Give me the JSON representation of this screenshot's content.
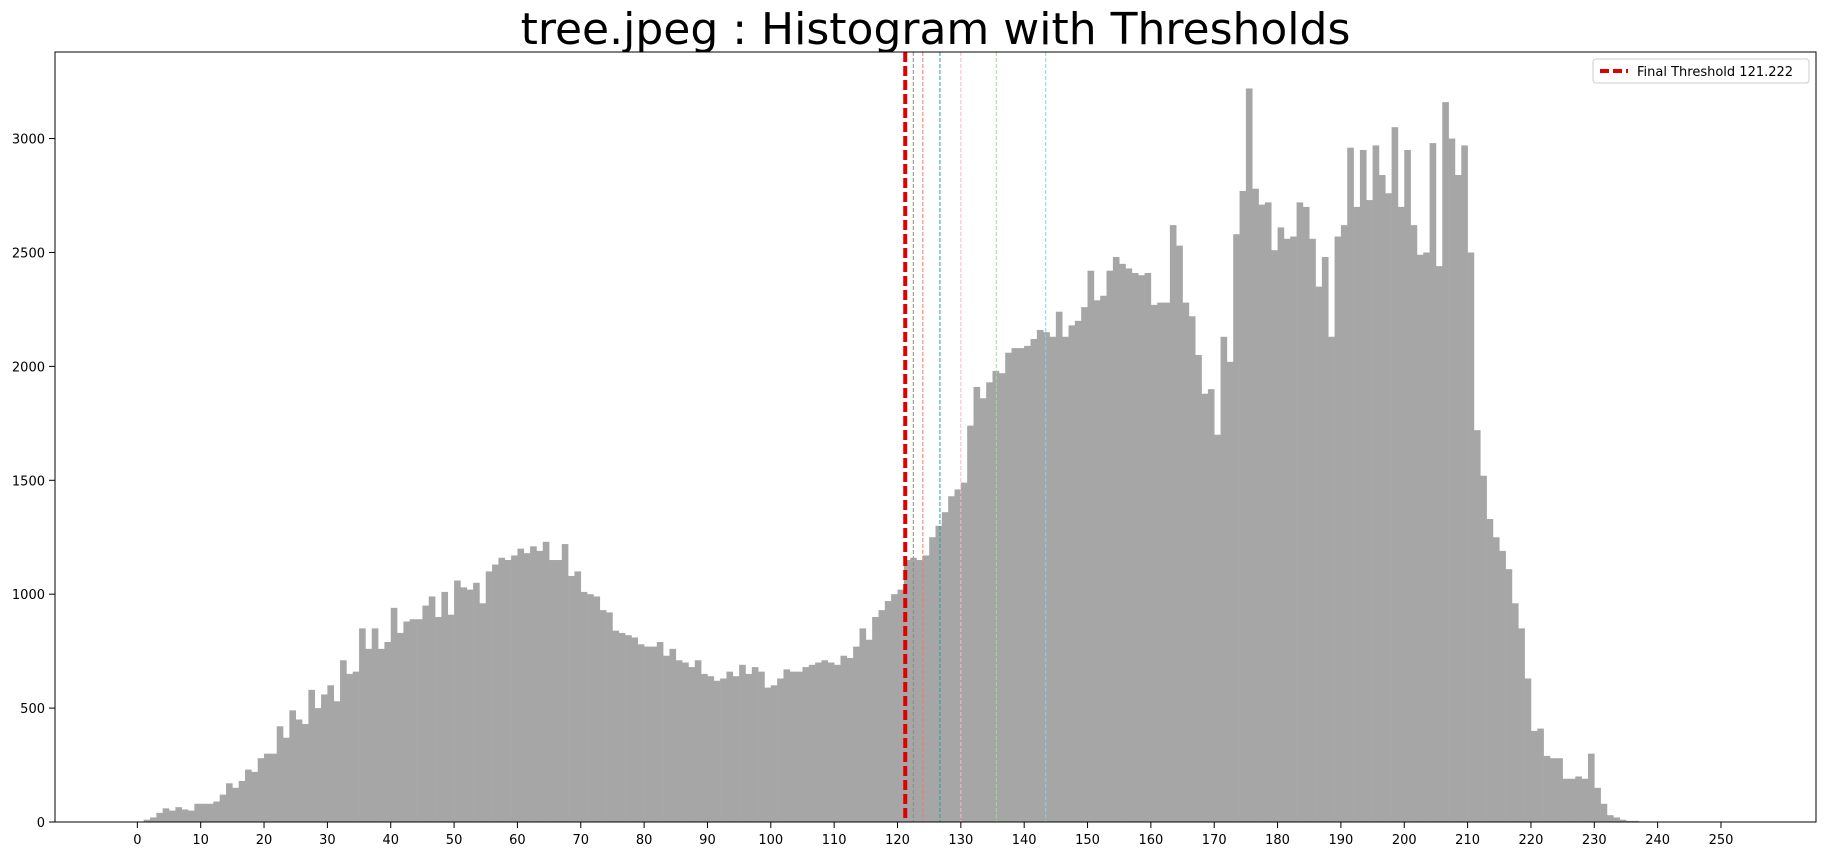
{
  "chart_data": {
    "type": "bar",
    "title": "tree.jpeg : Histogram with Thresholds",
    "xlabel": "",
    "ylabel": "",
    "xlim": [
      -13,
      265
    ],
    "ylim": [
      0,
      3380
    ],
    "grid": false,
    "legend_position": "top-right",
    "x_ticks": [
      0,
      10,
      20,
      30,
      40,
      50,
      60,
      70,
      80,
      90,
      100,
      110,
      120,
      130,
      140,
      150,
      160,
      170,
      180,
      190,
      200,
      210,
      220,
      230,
      240,
      250
    ],
    "y_ticks": [
      0,
      500,
      1000,
      1500,
      2000,
      2500,
      3000
    ],
    "bar_color": "#a6a6a6",
    "bins_start": 0,
    "bin_width": 1,
    "values": [
      0,
      10,
      20,
      40,
      60,
      50,
      65,
      55,
      50,
      80,
      80,
      80,
      90,
      120,
      170,
      150,
      180,
      230,
      220,
      280,
      300,
      300,
      420,
      370,
      490,
      450,
      430,
      580,
      500,
      560,
      600,
      530,
      710,
      650,
      660,
      850,
      760,
      850,
      760,
      790,
      940,
      830,
      880,
      890,
      890,
      950,
      990,
      900,
      1010,
      910,
      1060,
      1030,
      1020,
      1050,
      960,
      1100,
      1130,
      1160,
      1150,
      1170,
      1200,
      1180,
      1210,
      1190,
      1230,
      1150,
      1150,
      1220,
      1080,
      1100,
      1010,
      1000,
      990,
      930,
      920,
      840,
      830,
      820,
      810,
      780,
      770,
      770,
      790,
      730,
      760,
      710,
      700,
      680,
      710,
      650,
      640,
      620,
      630,
      660,
      640,
      690,
      650,
      680,
      660,
      590,
      600,
      630,
      670,
      660,
      660,
      680,
      690,
      700,
      710,
      700,
      690,
      730,
      720,
      770,
      850,
      800,
      900,
      930,
      970,
      1000,
      1020,
      1150,
      1160,
      1150,
      1170,
      1250,
      1300,
      1360,
      1430,
      1460,
      1490,
      1740,
      1910,
      1860,
      1930,
      1980,
      1970,
      2060,
      2080,
      2080,
      2090,
      2120,
      2160,
      2150,
      2130,
      2240,
      2130,
      2180,
      2200,
      2260,
      2420,
      2290,
      2310,
      2420,
      2480,
      2450,
      2430,
      2410,
      2400,
      2410,
      2270,
      2280,
      2280,
      2620,
      2530,
      2280,
      2220,
      2050,
      1880,
      1900,
      1700,
      2130,
      2020,
      2580,
      2770,
      3220,
      2780,
      2710,
      2720,
      2510,
      2610,
      2560,
      2570,
      2720,
      2700,
      2560,
      2350,
      2480,
      2130,
      2570,
      2620,
      2960,
      2700,
      2950,
      2730,
      2970,
      2840,
      2760,
      3050,
      2700,
      2950,
      2620,
      2490,
      2500,
      2980,
      2440,
      3160,
      3000,
      2840,
      2970,
      2500,
      1720,
      1520,
      1330,
      1250,
      1190,
      1110,
      960,
      850,
      630,
      400,
      410,
      290,
      280,
      280,
      190,
      190,
      200,
      190,
      300,
      150,
      80,
      30,
      20,
      10,
      5,
      5,
      0,
      0,
      0,
      0,
      0,
      0,
      0,
      0,
      0,
      0,
      0,
      0,
      0,
      0,
      0,
      0,
      0,
      0,
      0
    ],
    "thresholds": [
      {
        "value": 122.5,
        "color": "#8b8b8b",
        "style": "dashed"
      },
      {
        "value": 124,
        "color": "#f4776b",
        "style": "dashed"
      },
      {
        "value": 126.7,
        "color": "#1aa3a3",
        "style": "dashed"
      },
      {
        "value": 130,
        "color": "#ffb6c1",
        "style": "dashed"
      },
      {
        "value": 135.6,
        "color": "#98e090",
        "style": "dashed"
      },
      {
        "value": 143.4,
        "color": "#87cfee",
        "style": "dashed"
      }
    ],
    "final_threshold": {
      "value": 121.222,
      "color": "#e00000",
      "label": "Final Threshold 121.222"
    }
  }
}
